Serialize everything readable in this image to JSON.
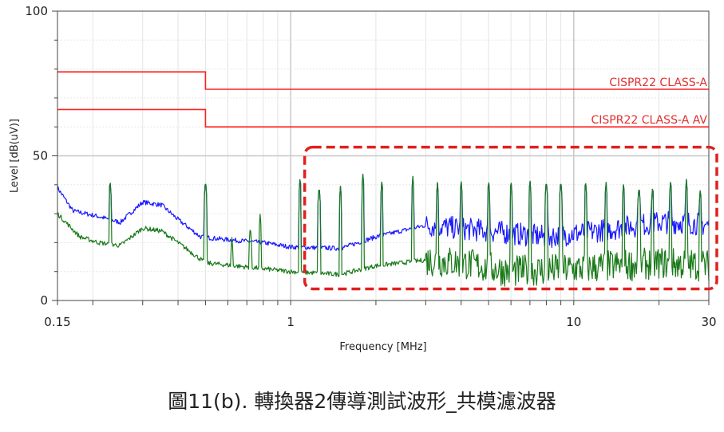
{
  "caption": "圖11(b). 轉換器2傳導測試波形_共模濾波器",
  "chart_data": {
    "type": "line",
    "xlabel": "Frequency [MHz]",
    "ylabel": "Level [dB(uV)]",
    "xscale": "log",
    "xlim": [
      0.15,
      30
    ],
    "ylim": [
      0,
      100
    ],
    "x_ticks": [
      {
        "value": 0.15,
        "label": "0.15"
      },
      {
        "value": 1,
        "label": "1"
      },
      {
        "value": 10,
        "label": "10"
      },
      {
        "value": 30,
        "label": "30"
      }
    ],
    "y_ticks": [
      {
        "value": 0,
        "label": "0"
      },
      {
        "value": 50,
        "label": "50"
      },
      {
        "value": 100,
        "label": "100"
      }
    ],
    "grid": true,
    "limits": [
      {
        "label": "CISPR22 CLASS-A",
        "color": "#ff2020",
        "segments": [
          [
            0.15,
            0.5,
            79
          ],
          [
            0.5,
            30,
            73
          ]
        ]
      },
      {
        "label": "CISPR22 CLASS-A AV",
        "color": "#ff2020",
        "segments": [
          [
            0.15,
            0.5,
            66
          ],
          [
            0.5,
            30,
            60
          ]
        ]
      }
    ],
    "series": [
      {
        "color": "#1a1aff",
        "baseline": [
          [
            0.15,
            39
          ],
          [
            0.17,
            31
          ],
          [
            0.21,
            29
          ],
          [
            0.25,
            27
          ],
          [
            0.3,
            34
          ],
          [
            0.35,
            33
          ],
          [
            0.4,
            28
          ],
          [
            0.48,
            22
          ],
          [
            0.6,
            21
          ],
          [
            0.8,
            20
          ],
          [
            1.0,
            18.5
          ],
          [
            1.5,
            18
          ],
          [
            2.0,
            22
          ],
          [
            3.0,
            26
          ],
          [
            5.0,
            24
          ],
          [
            8.0,
            22
          ],
          [
            12.0,
            24
          ],
          [
            20.0,
            27
          ],
          [
            25.0,
            27
          ],
          [
            30.0,
            26
          ]
        ],
        "peaks": [
          [
            0.23,
            42
          ],
          [
            0.5,
            42
          ],
          [
            1.08,
            43
          ],
          [
            1.26,
            40
          ],
          [
            1.5,
            40
          ],
          [
            1.8,
            44
          ],
          [
            2.1,
            42
          ],
          [
            2.7,
            43
          ],
          [
            3.3,
            41
          ],
          [
            4.0,
            42
          ],
          [
            5.0,
            42
          ],
          [
            6.0,
            42
          ],
          [
            7.0,
            42
          ],
          [
            8.0,
            42
          ],
          [
            9.0,
            42
          ],
          [
            11.0,
            42
          ],
          [
            13.0,
            41
          ],
          [
            15.0,
            41
          ],
          [
            17.0,
            40
          ],
          [
            19.0,
            40
          ],
          [
            22.0,
            42
          ],
          [
            25.0,
            42
          ],
          [
            28.0,
            39
          ]
        ]
      },
      {
        "color": "#1a7a1a",
        "baseline": [
          [
            0.15,
            30
          ],
          [
            0.18,
            22
          ],
          [
            0.21,
            20
          ],
          [
            0.25,
            19
          ],
          [
            0.3,
            25
          ],
          [
            0.35,
            24
          ],
          [
            0.4,
            20
          ],
          [
            0.5,
            13
          ],
          [
            0.8,
            11
          ],
          [
            1.0,
            10
          ],
          [
            1.5,
            9
          ],
          [
            2.0,
            12
          ],
          [
            3.0,
            14
          ],
          [
            4.0,
            13
          ],
          [
            6.0,
            10
          ],
          [
            10.0,
            11
          ],
          [
            20.0,
            13
          ],
          [
            30.0,
            12
          ]
        ],
        "peaks": [
          [
            0.23,
            42
          ],
          [
            0.5,
            42
          ],
          [
            0.62,
            22
          ],
          [
            0.72,
            26
          ],
          [
            0.78,
            30
          ],
          [
            1.08,
            43
          ],
          [
            1.26,
            40
          ],
          [
            1.5,
            40
          ],
          [
            1.8,
            44
          ],
          [
            2.1,
            42
          ],
          [
            2.7,
            43
          ],
          [
            3.3,
            41
          ],
          [
            4.0,
            42
          ],
          [
            5.0,
            42
          ],
          [
            6.0,
            42
          ],
          [
            7.0,
            42
          ],
          [
            8.0,
            42
          ],
          [
            9.0,
            42
          ],
          [
            11.0,
            42
          ],
          [
            13.0,
            41
          ],
          [
            15.0,
            41
          ],
          [
            17.0,
            40
          ],
          [
            19.0,
            40
          ],
          [
            22.0,
            42
          ],
          [
            25.0,
            42
          ],
          [
            28.0,
            39
          ]
        ]
      }
    ],
    "highlight_box": {
      "x": [
        1.05,
        30
      ],
      "y": [
        4,
        53
      ],
      "color": "#e02020",
      "style": "dashed"
    }
  }
}
